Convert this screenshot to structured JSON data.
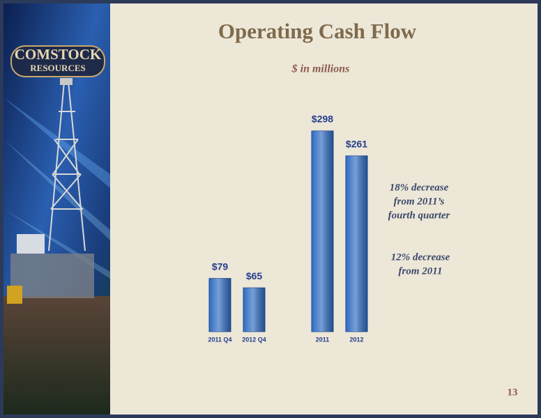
{
  "chart_data": {
    "type": "bar",
    "title": "Operating Cash Flow",
    "subtitle": "$ in millions",
    "categories": [
      "2011 Q4",
      "2012 Q4",
      "2011",
      "2012"
    ],
    "values": [
      79,
      65,
      298,
      261
    ],
    "value_labels": [
      "$79",
      "$65",
      "$298",
      "$261"
    ],
    "color": "#2f6cc2",
    "annotations": [
      [
        "18% decrease",
        "from 2011’s",
        "fourth quarter"
      ],
      [
        "12% decrease",
        "from 2011"
      ]
    ]
  },
  "logo": {
    "line1": "COMSTOCK",
    "line2": "RESOURCES"
  },
  "page_number": "13"
}
